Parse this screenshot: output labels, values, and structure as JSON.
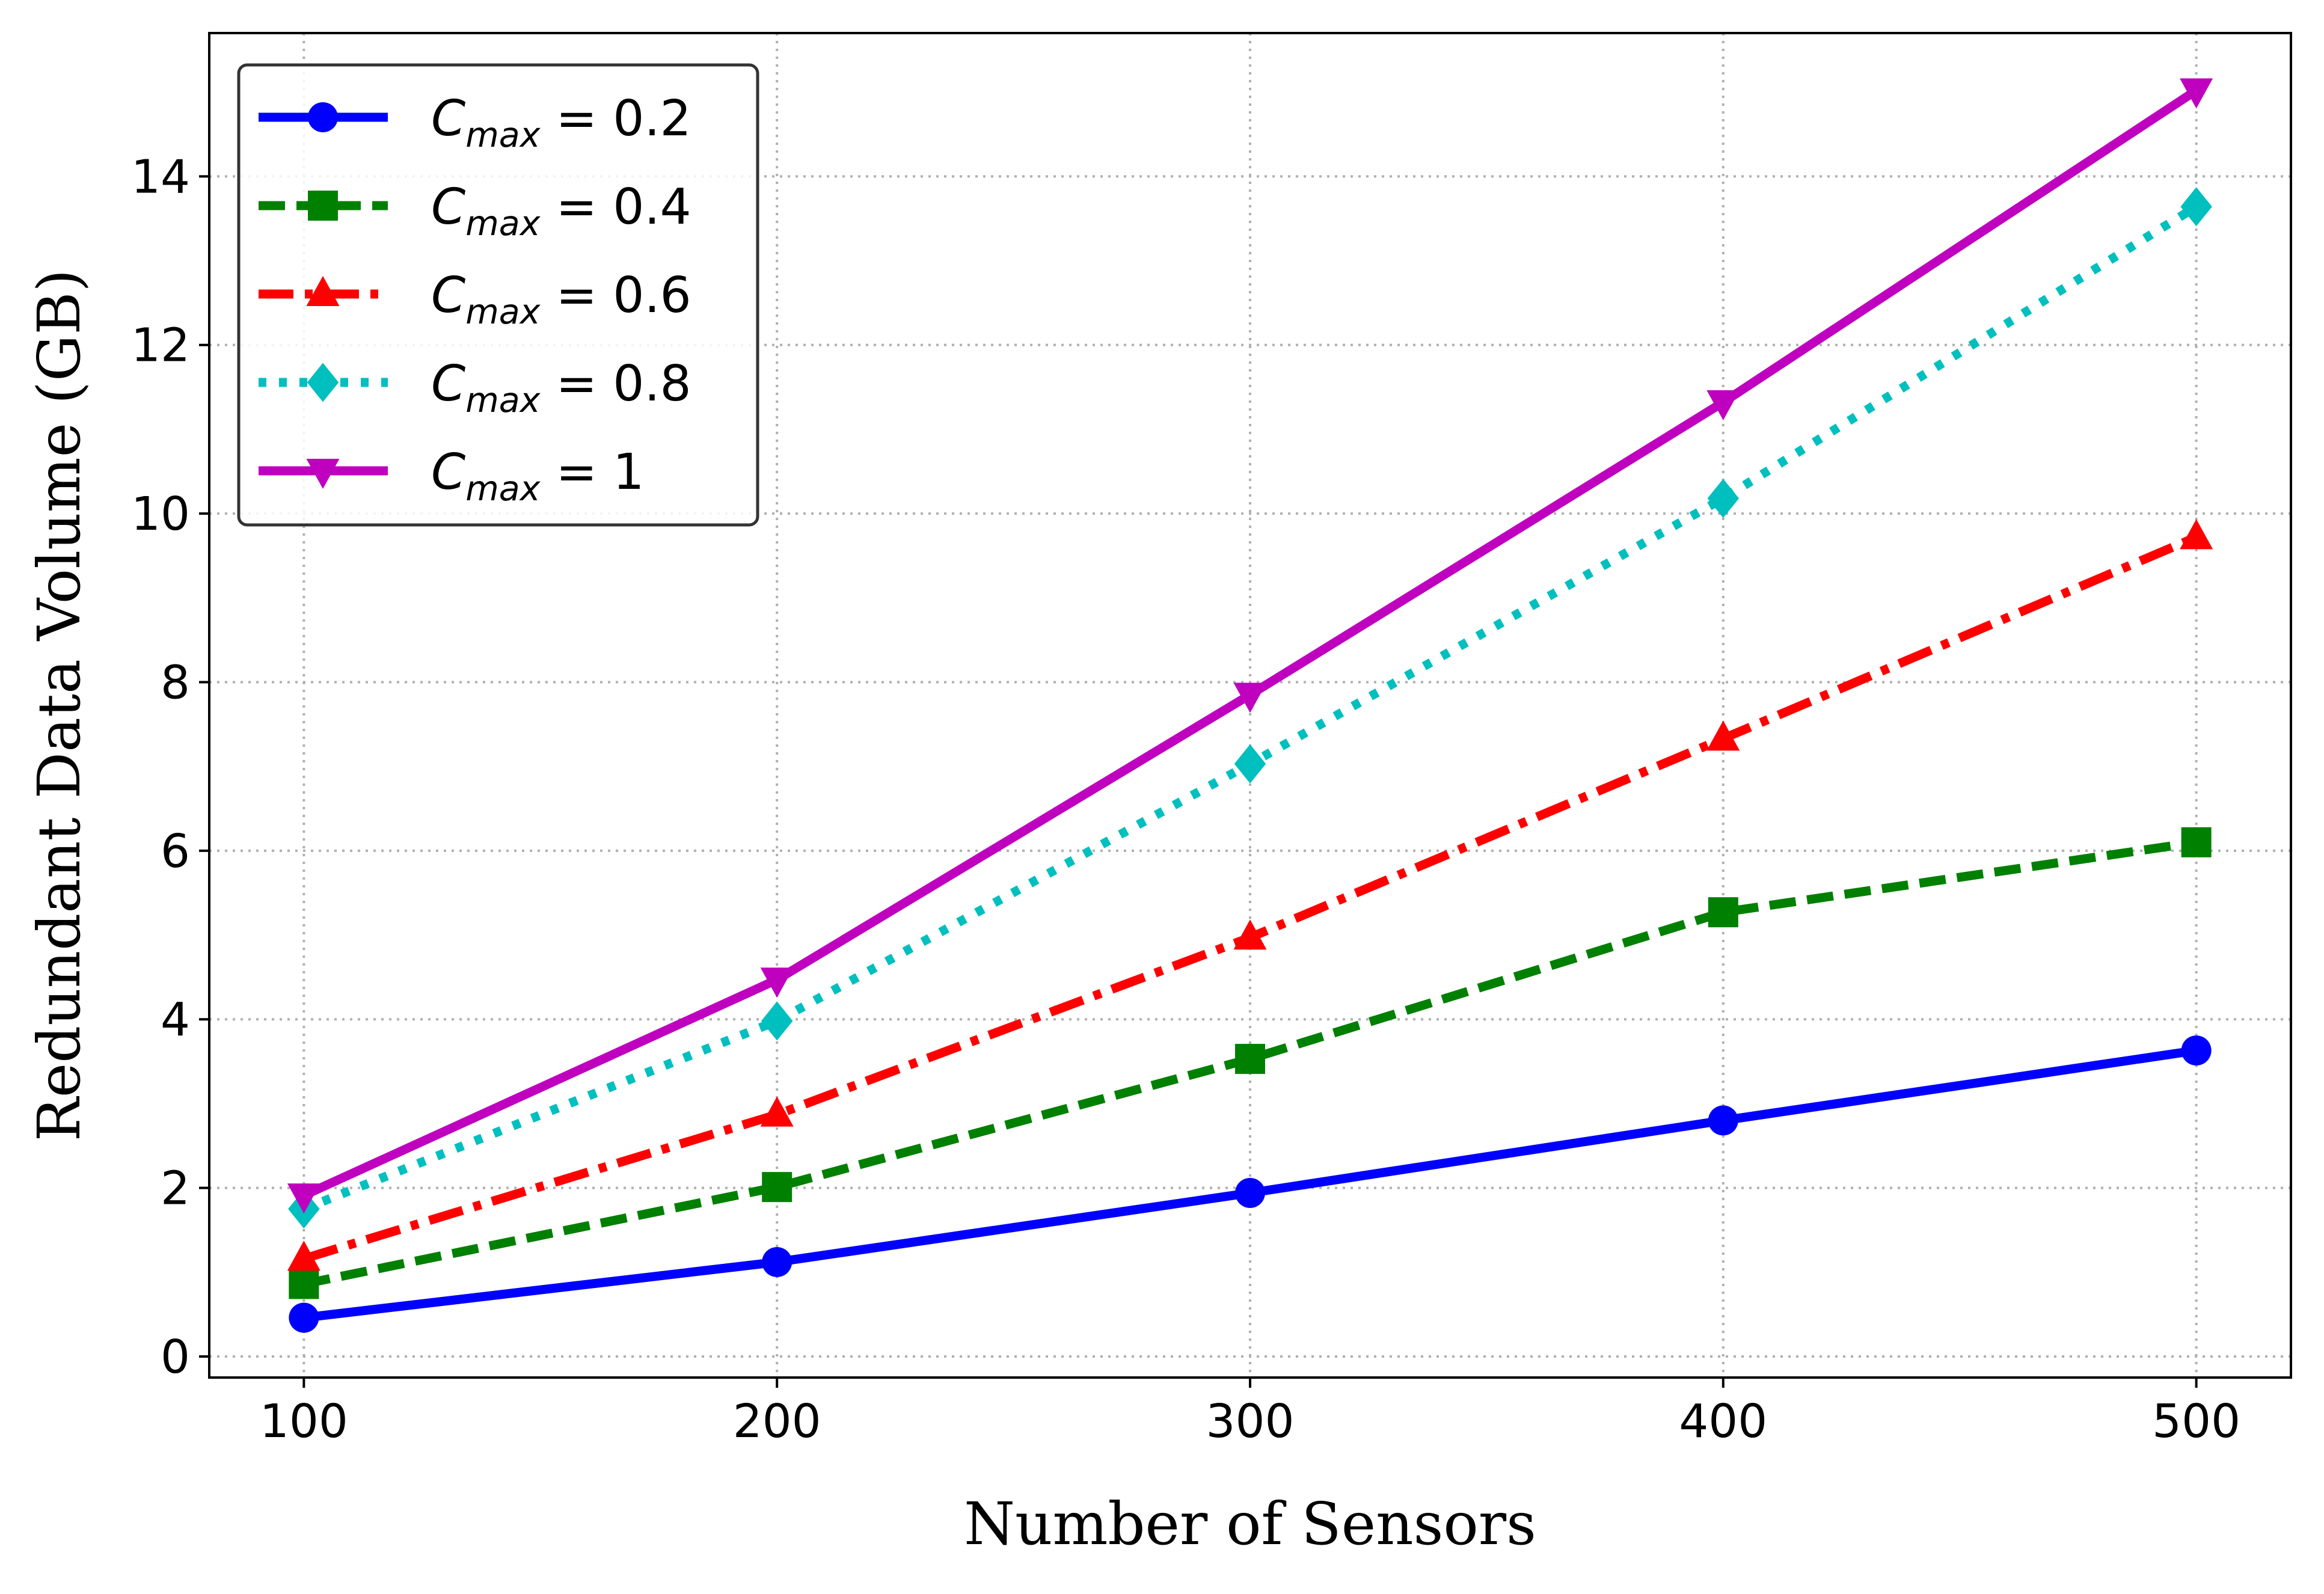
{
  "chart_data": {
    "type": "line",
    "xlabel": "Number of Sensors",
    "ylabel": "Redundant Data Volume (GB)",
    "x": [
      100,
      200,
      300,
      400,
      500
    ],
    "xlim": [
      80,
      520
    ],
    "ylim": [
      -0.25,
      15.7
    ],
    "xticks": [
      100,
      200,
      300,
      400,
      500
    ],
    "yticks": [
      0,
      2,
      4,
      6,
      8,
      10,
      12,
      14
    ],
    "grid": true,
    "legend_position": "top-left",
    "series": [
      {
        "name": "C_max = 0.2",
        "legend_prefix": "C",
        "legend_sub": "max",
        "legend_value": " = 0.2",
        "color": "#0000ff",
        "marker": "circle",
        "linestyle": "solid",
        "values": [
          0.46,
          1.12,
          1.94,
          2.8,
          3.63
        ]
      },
      {
        "name": "C_max = 0.4",
        "legend_prefix": "C",
        "legend_sub": "max",
        "legend_value": " = 0.4",
        "color": "#008000",
        "marker": "square",
        "linestyle": "dashed",
        "values": [
          0.86,
          2.01,
          3.53,
          5.27,
          6.1
        ]
      },
      {
        "name": "C_max = 0.6",
        "legend_prefix": "C",
        "legend_sub": "max",
        "legend_value": " = 0.6",
        "color": "#ff0000",
        "marker": "triangle-up",
        "linestyle": "dashdot",
        "values": [
          1.16,
          2.87,
          4.97,
          7.33,
          9.72
        ]
      },
      {
        "name": "C_max = 0.8",
        "legend_prefix": "C",
        "legend_sub": "max",
        "legend_value": " = 0.8",
        "color": "#00bfbf",
        "marker": "diamond",
        "linestyle": "dotted",
        "values": [
          1.75,
          3.98,
          7.03,
          10.18,
          13.64
        ]
      },
      {
        "name": "C_max = 1",
        "legend_prefix": "C",
        "legend_sub": "max",
        "legend_value": " = 1",
        "color": "#bf00bf",
        "marker": "triangle-down",
        "linestyle": "solid",
        "values": [
          1.91,
          4.47,
          7.85,
          11.32,
          15.02
        ]
      }
    ]
  }
}
